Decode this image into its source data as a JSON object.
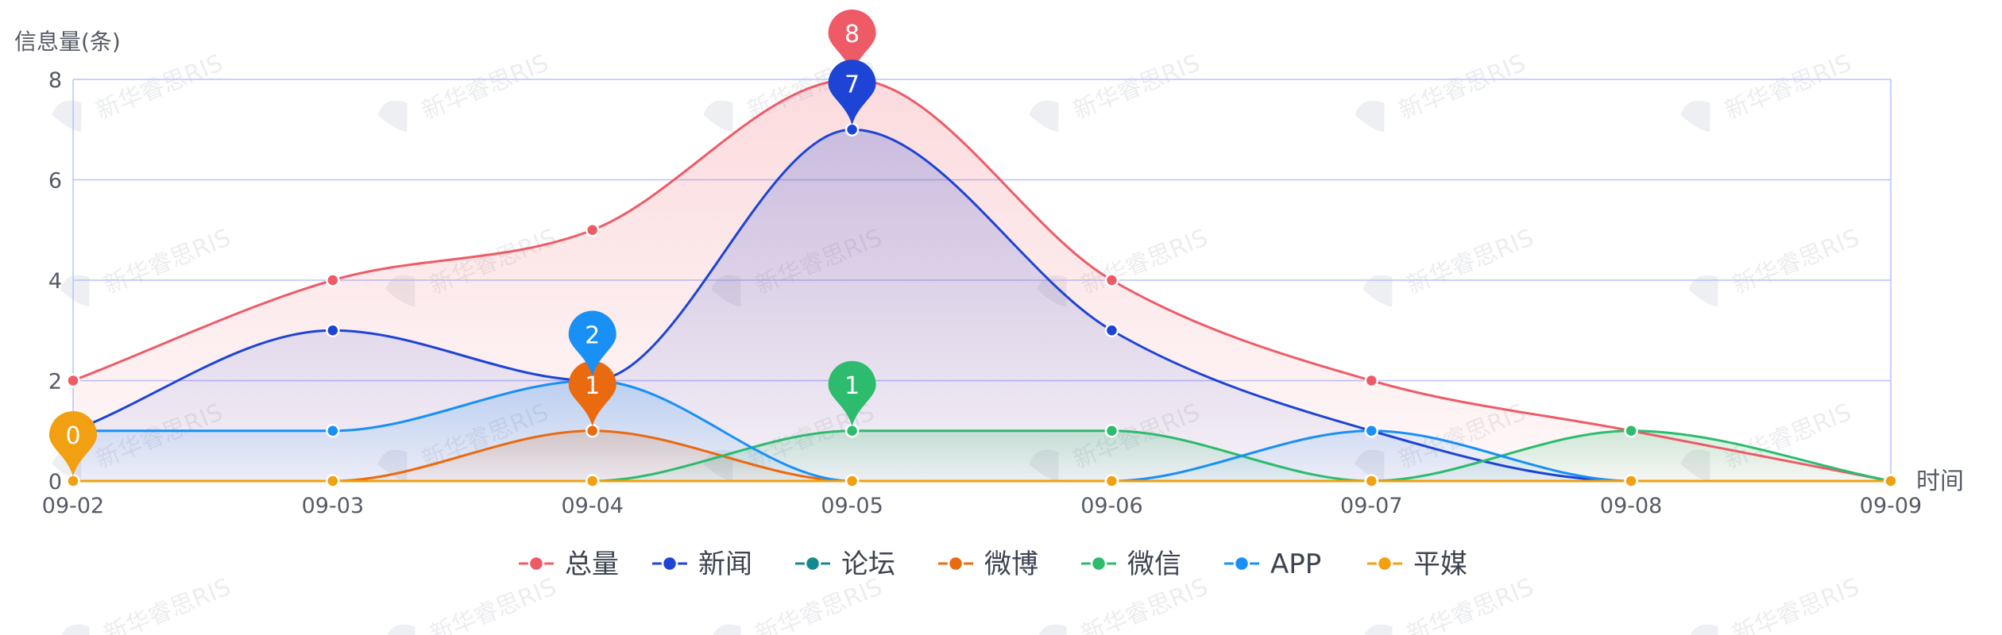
{
  "chart_data": {
    "type": "line",
    "smooth": true,
    "title": "",
    "ylabel": "信息量(条)",
    "xlabel": "时间",
    "ylim": [
      0,
      8
    ],
    "yticks": [
      0,
      2,
      4,
      6,
      8
    ],
    "grid": true,
    "legend_position": "bottom-center",
    "watermark": "新华睿思RIS",
    "categories": [
      "09-02",
      "09-03",
      "09-04",
      "09-05",
      "09-06",
      "09-07",
      "09-08",
      "09-09"
    ],
    "series": [
      {
        "name": "总量",
        "color": "#ee5b67",
        "area": true,
        "values": [
          2,
          4,
          5,
          8,
          4,
          2,
          1,
          0
        ],
        "max_pin": {
          "index": 3,
          "value": "8"
        }
      },
      {
        "name": "新闻",
        "color": "#1d44d4",
        "area": true,
        "values": [
          1,
          3,
          2,
          7,
          3,
          1,
          0,
          0
        ],
        "max_pin": {
          "index": 3,
          "value": "7"
        }
      },
      {
        "name": "论坛",
        "color": "#158a8e",
        "area": false,
        "values": [
          0,
          0,
          0,
          0,
          0,
          0,
          0,
          0
        ]
      },
      {
        "name": "微博",
        "color": "#ea6a10",
        "area": true,
        "values": [
          0,
          0,
          1,
          0,
          0,
          0,
          0,
          0
        ],
        "max_pin": {
          "index": 2,
          "value": "1"
        }
      },
      {
        "name": "微信",
        "color": "#2dbb6e",
        "area": true,
        "values": [
          0,
          0,
          0,
          1,
          1,
          0,
          1,
          0
        ],
        "max_pin": {
          "index": 3,
          "value": "1"
        }
      },
      {
        "name": "APP",
        "color": "#1890f5",
        "area": true,
        "values": [
          1,
          1,
          2,
          0,
          0,
          1,
          0,
          0
        ],
        "max_pin": {
          "index": 2,
          "value": "2"
        }
      },
      {
        "name": "平媒",
        "color": "#f0a010",
        "area": false,
        "values": [
          0,
          0,
          0,
          0,
          0,
          0,
          0,
          0
        ],
        "max_pin": {
          "index": 0,
          "value": "0"
        }
      }
    ]
  }
}
